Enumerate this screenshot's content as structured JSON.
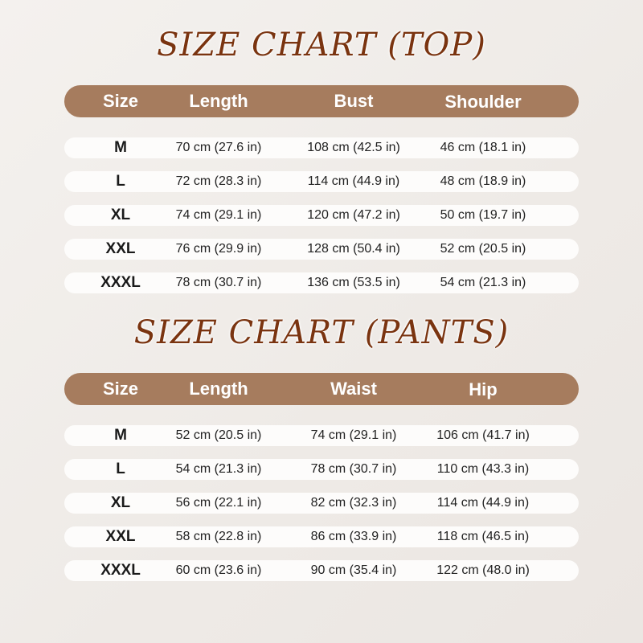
{
  "top": {
    "title": "SIZE CHART (TOP)",
    "headers": [
      "Size",
      "Length",
      "Bust",
      "Shoulder"
    ],
    "rows": [
      [
        "M",
        "70 cm (27.6 in)",
        "108 cm (42.5 in)",
        "46 cm (18.1 in)"
      ],
      [
        "L",
        "72 cm (28.3 in)",
        "114 cm (44.9 in)",
        "48 cm (18.9 in)"
      ],
      [
        "XL",
        "74 cm (29.1 in)",
        "120 cm (47.2 in)",
        "50 cm (19.7 in)"
      ],
      [
        "XXL",
        "76 cm (29.9 in)",
        "128 cm (50.4 in)",
        "52 cm (20.5 in)"
      ],
      [
        "XXXL",
        "78 cm (30.7 in)",
        "136 cm (53.5 in)",
        "54 cm (21.3 in)"
      ]
    ]
  },
  "pants": {
    "title": "SIZE CHART (PANTS)",
    "headers": [
      "Size",
      "Length",
      "Waist",
      "Hip"
    ],
    "rows": [
      [
        "M",
        "52 cm (20.5 in)",
        "74 cm (29.1 in)",
        "106 cm (41.7 in)"
      ],
      [
        "L",
        "54 cm (21.3 in)",
        "78 cm (30.7 in)",
        "110 cm (43.3 in)"
      ],
      [
        "XL",
        "56 cm (22.1 in)",
        "82 cm (32.3 in)",
        "114 cm (44.9 in)"
      ],
      [
        "XXL",
        "58 cm (22.8 in)",
        "86 cm (33.9 in)",
        "118 cm (46.5 in)"
      ],
      [
        "XXXL",
        "60 cm (23.6 in)",
        "90 cm (35.4 in)",
        "122 cm (48.0 in)"
      ]
    ]
  },
  "colors": {
    "header_bg": "#a67c5e",
    "title": "#7a3410",
    "row_bg": "#fdfcfb"
  }
}
